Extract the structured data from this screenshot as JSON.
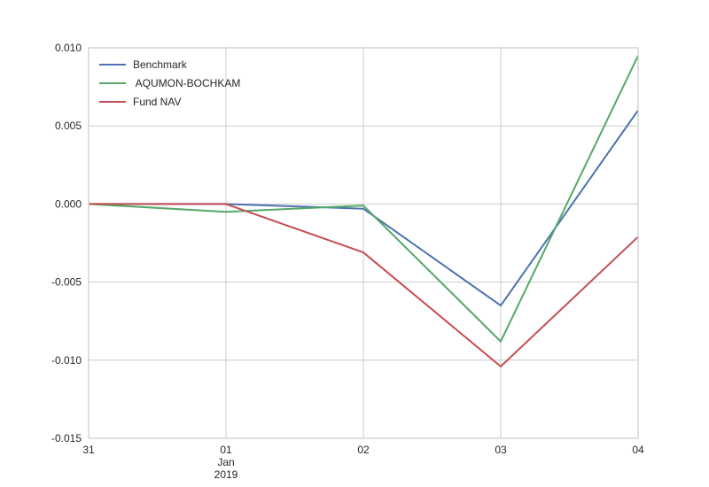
{
  "chart_data": {
    "type": "line",
    "title": "",
    "xlabel": "",
    "ylabel": "",
    "x": [
      "2018-12-31",
      "2019-01-01",
      "2019-01-02",
      "2019-01-03",
      "2019-01-04"
    ],
    "x_ticks": [
      {
        "x": "2018-12-31",
        "lines": [
          "31"
        ]
      },
      {
        "x": "2019-01-01",
        "lines": [
          "01",
          "Jan",
          "2019"
        ]
      },
      {
        "x": "2019-01-02",
        "lines": [
          "02"
        ]
      },
      {
        "x": "2019-01-03",
        "lines": [
          "03"
        ]
      },
      {
        "x": "2019-01-04",
        "lines": [
          "04"
        ]
      }
    ],
    "y_ticks": [
      "0.010",
      "0.005",
      "0.000",
      "-0.005",
      "-0.010",
      "-0.015"
    ],
    "ylim": [
      -0.015,
      0.01
    ],
    "grid": true,
    "legend_position": "top-left",
    "series": [
      {
        "name": "Benchmark",
        "color": "#4c72b0",
        "values": [
          0.0,
          0.0,
          -0.0003,
          -0.0065,
          0.006
        ]
      },
      {
        "name": " AQUMON-BOCHKAM",
        "color": "#55a868",
        "values": [
          0.0,
          -0.0005,
          -0.0001,
          -0.0088,
          0.0095
        ]
      },
      {
        "name": "Fund NAV",
        "color": "#c44e52",
        "values": [
          0.0,
          0.0,
          -0.0031,
          -0.0104,
          -0.0021
        ]
      }
    ]
  }
}
